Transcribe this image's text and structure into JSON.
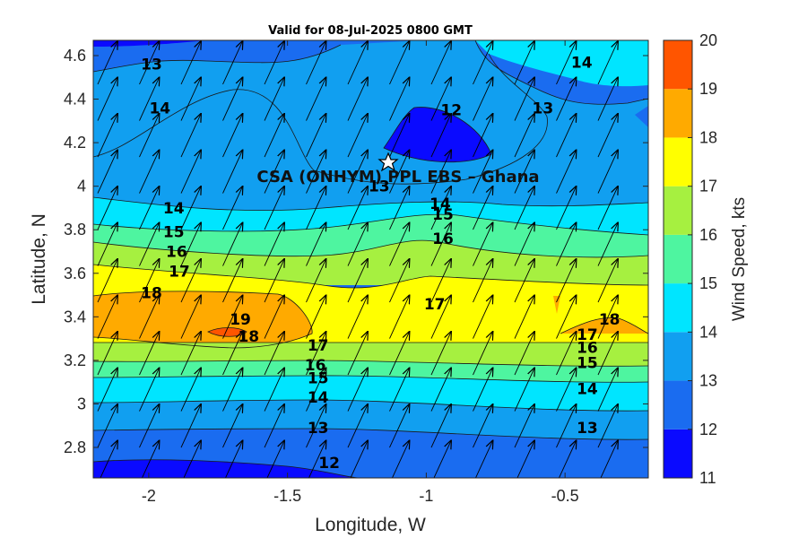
{
  "chart_data": {
    "type": "contour",
    "title": "Valid for 08-Jul-2025 0800 GMT",
    "xlabel": "Longitude, W",
    "ylabel": "Latitude, N",
    "colorbar_label": "Wind Speed, kts",
    "xlim": [
      -2.2,
      -0.2
    ],
    "ylim": [
      2.66,
      4.67
    ],
    "x_ticks": [
      -2,
      -1.5,
      -1,
      -0.5
    ],
    "x_tick_labels": [
      "-2",
      "-1.5",
      "-1",
      "-0.5"
    ],
    "y_ticks": [
      2.8,
      3.0,
      3.2,
      3.4,
      3.6,
      3.8,
      4.0,
      4.2,
      4.4,
      4.6
    ],
    "y_tick_labels": [
      "2.8",
      "3",
      "3.2",
      "3.4",
      "3.6",
      "3.8",
      "4",
      "4.2",
      "4.4",
      "4.6"
    ],
    "colorbar_levels": [
      11,
      12,
      13,
      14,
      15,
      16,
      17,
      18,
      19,
      20
    ],
    "colorbar_colors": [
      "#0a0aff",
      "#1a6cf0",
      "#119ff0",
      "#00e5ff",
      "#4ef5a0",
      "#a6f040",
      "#ffff00",
      "#ffaa00",
      "#ff5500"
    ],
    "contour_labels": [
      {
        "text": "13",
        "lon": -1.99,
        "lat": 4.56
      },
      {
        "text": "14",
        "lon": -1.96,
        "lat": 4.36
      },
      {
        "text": "12",
        "lon": -0.91,
        "lat": 4.35
      },
      {
        "text": "13",
        "lon": -0.58,
        "lat": 4.36
      },
      {
        "text": "14",
        "lon": -0.44,
        "lat": 4.57
      },
      {
        "text": "13",
        "lon": -1.17,
        "lat": 4.0
      },
      {
        "text": "14",
        "lon": -1.91,
        "lat": 3.9
      },
      {
        "text": "15",
        "lon": -1.91,
        "lat": 3.79
      },
      {
        "text": "16",
        "lon": -1.9,
        "lat": 3.7
      },
      {
        "text": "17",
        "lon": -1.89,
        "lat": 3.61
      },
      {
        "text": "18",
        "lon": -1.99,
        "lat": 3.51
      },
      {
        "text": "14",
        "lon": -0.95,
        "lat": 3.92
      },
      {
        "text": "15",
        "lon": -0.94,
        "lat": 3.87
      },
      {
        "text": "16",
        "lon": -0.94,
        "lat": 3.76
      },
      {
        "text": "17",
        "lon": -0.97,
        "lat": 3.46
      },
      {
        "text": "19",
        "lon": -1.67,
        "lat": 3.39
      },
      {
        "text": "18",
        "lon": -1.64,
        "lat": 3.31
      },
      {
        "text": "17",
        "lon": -1.39,
        "lat": 3.27
      },
      {
        "text": "16",
        "lon": -1.4,
        "lat": 3.18
      },
      {
        "text": "15",
        "lon": -1.39,
        "lat": 3.12
      },
      {
        "text": "14",
        "lon": -1.39,
        "lat": 3.03
      },
      {
        "text": "13",
        "lon": -1.39,
        "lat": 2.89
      },
      {
        "text": "12",
        "lon": -1.35,
        "lat": 2.73
      },
      {
        "text": "18",
        "lon": -0.34,
        "lat": 3.39
      },
      {
        "text": "17",
        "lon": -0.42,
        "lat": 3.32
      },
      {
        "text": "16",
        "lon": -0.42,
        "lat": 3.26
      },
      {
        "text": "15",
        "lon": -0.42,
        "lat": 3.19
      },
      {
        "text": "14",
        "lon": -0.42,
        "lat": 3.07
      },
      {
        "text": "13",
        "lon": -0.42,
        "lat": 2.89
      }
    ],
    "site": {
      "name": "CSA (ONHYM) PPL EBS  – Ghana",
      "lon": -1.09,
      "lat": 4.11,
      "marker": "star"
    },
    "wind_direction": "from south-southwest (vectors point north-northeast)"
  }
}
